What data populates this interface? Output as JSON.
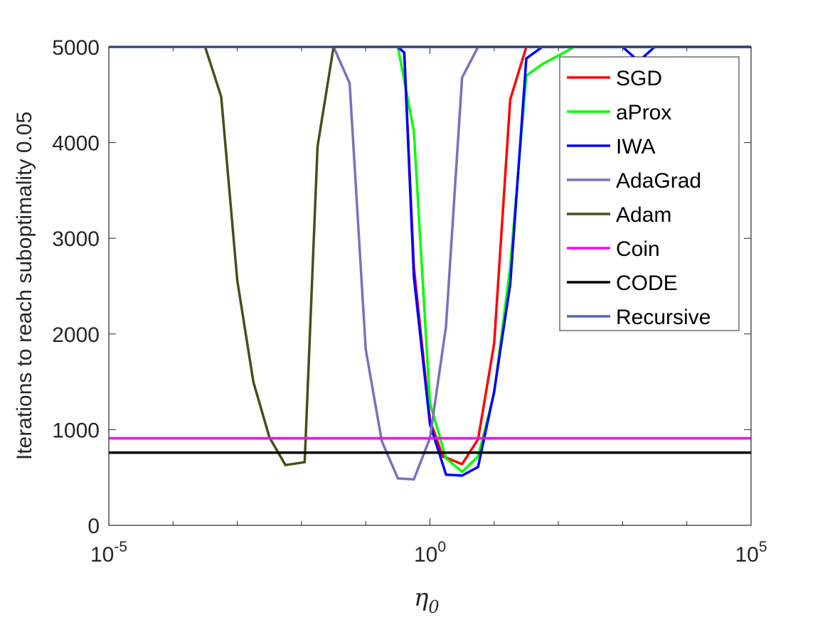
{
  "chart_data": {
    "type": "line",
    "title": "",
    "xlabel": "η",
    "xlabel_subscript": "0",
    "ylabel": "Iterations to reach suboptimality 0.05",
    "xscale": "log",
    "xlim": [
      -5,
      5
    ],
    "ylim": [
      0,
      5000
    ],
    "x_ticks": [
      {
        "exp": -5,
        "base": "10",
        "sup": "-5"
      },
      {
        "exp": 0,
        "base": "10",
        "sup": "0"
      },
      {
        "exp": 5,
        "base": "10",
        "sup": "5"
      }
    ],
    "y_ticks": [
      {
        "value": 0,
        "label": "0"
      },
      {
        "value": 1000,
        "label": "1000"
      },
      {
        "value": 2000,
        "label": "2000"
      },
      {
        "value": 3000,
        "label": "3000"
      },
      {
        "value": 4000,
        "label": "4000"
      },
      {
        "value": 5000,
        "label": "5000"
      }
    ],
    "grid": false,
    "legend_position": "top-right",
    "series": [
      {
        "name": "SGD",
        "color": "#ff0000",
        "log10_x": [
          -0.5,
          -0.4,
          -0.25,
          0,
          0.2,
          0.5,
          0.75,
          1,
          1.25,
          1.5,
          1.75,
          2,
          5
        ],
        "y": [
          5000,
          4940,
          2700,
          1100,
          720,
          640,
          900,
          1900,
          4450,
          5000,
          5000,
          5000,
          5000
        ]
      },
      {
        "name": "aProx",
        "color": "#00ff00",
        "log10_x": [
          -0.5,
          -0.25,
          0,
          0.25,
          0.5,
          0.75,
          1,
          1.25,
          1.5,
          1.75,
          2.25,
          5
        ],
        "y": [
          5000,
          4120,
          1280,
          700,
          560,
          720,
          1380,
          2700,
          4700,
          4820,
          5000,
          5000
        ]
      },
      {
        "name": "IWA",
        "color": "#0000ff",
        "log10_x": [
          -0.5,
          -0.4,
          -0.25,
          0,
          0.25,
          0.5,
          0.75,
          1,
          1.25,
          1.5,
          1.75,
          3,
          3.25,
          3.5,
          5
        ],
        "y": [
          5000,
          4940,
          2600,
          1060,
          530,
          520,
          610,
          1400,
          2520,
          4880,
          5000,
          5000,
          4850,
          5000,
          5000
        ]
      },
      {
        "name": "AdaGrad",
        "color": "#7e6fbb",
        "log10_x": [
          -1.5,
          -1.25,
          -1,
          -0.75,
          -0.5,
          -0.25,
          0,
          0.25,
          0.5,
          0.75,
          5
        ],
        "y": [
          5000,
          4620,
          1840,
          880,
          490,
          480,
          910,
          2080,
          4680,
          5000,
          5000
        ]
      },
      {
        "name": "Adam",
        "color": "#4c4c1a",
        "log10_x": [
          -3.5,
          -3.25,
          -3,
          -2.75,
          -2.5,
          -2.25,
          -1.95,
          -1.75,
          -1.5,
          5
        ],
        "y": [
          5000,
          4480,
          2560,
          1500,
          920,
          630,
          660,
          3960,
          5000,
          5000
        ]
      },
      {
        "name": "Coin",
        "color": "#ff00ff",
        "log10_x": [
          -5,
          5
        ],
        "y": [
          910,
          910
        ]
      },
      {
        "name": "CODE",
        "color": "#000000",
        "log10_x": [
          -5,
          5
        ],
        "y": [
          760,
          760
        ]
      },
      {
        "name": "Recursive",
        "color": "#4c68b8",
        "log10_x": [
          -5,
          5
        ],
        "y": [
          5000,
          5000
        ]
      }
    ]
  }
}
